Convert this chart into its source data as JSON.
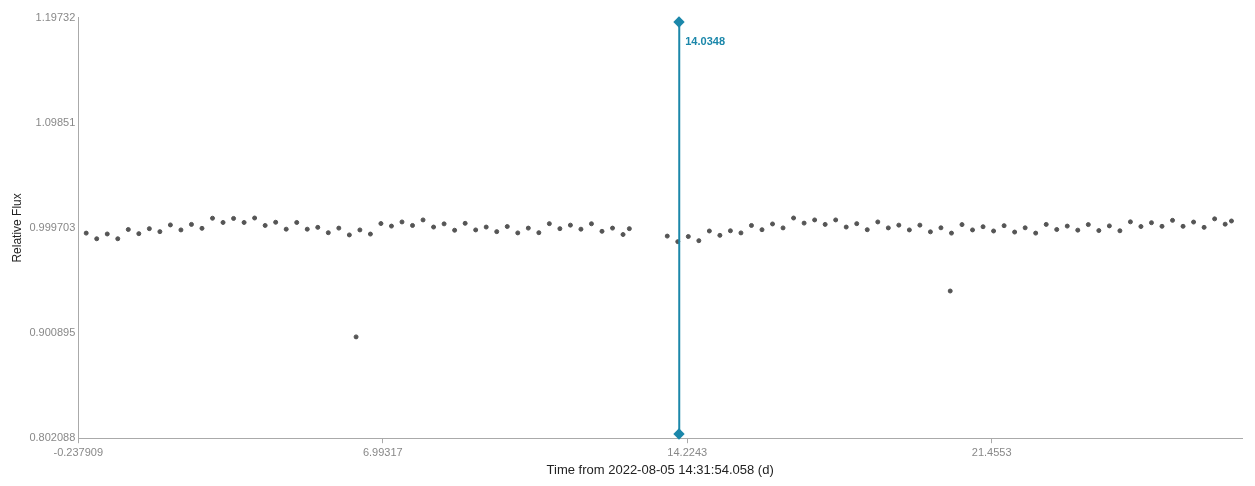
{
  "chart_data": {
    "type": "scatter",
    "xlabel": "Time from 2022-08-05 14:31:54.058 (d)",
    "ylabel": "Relative Flux",
    "xlim": [
      -0.237909,
      27.4
    ],
    "xticks": [
      -0.237909,
      6.99317,
      14.2243,
      21.4553
    ],
    "ylim": [
      0.802088,
      1.19732
    ],
    "yticks": [
      0.802088,
      0.900895,
      0.999703,
      1.09851,
      1.19732
    ],
    "grid": false,
    "legend": false,
    "marker": "circle",
    "ref_lines": [
      {
        "axis": "x",
        "value": 14.0348,
        "label": "14.0348",
        "color": "#1b87aa"
      }
    ],
    "series": [
      {
        "color": "#555555",
        "x": [
          -0.05,
          0.2,
          0.45,
          0.7,
          0.95,
          1.2,
          1.45,
          1.7,
          1.95,
          2.2,
          2.45,
          2.7,
          2.95,
          3.2,
          3.45,
          3.7,
          3.95,
          4.2,
          4.45,
          4.7,
          4.95,
          5.2,
          5.45,
          5.7,
          5.95,
          6.2,
          6.36,
          6.45,
          6.7,
          6.95,
          7.2,
          7.45,
          7.7,
          7.95,
          8.2,
          8.45,
          8.7,
          8.95,
          9.2,
          9.45,
          9.7,
          9.95,
          10.2,
          10.45,
          10.7,
          10.95,
          11.2,
          11.45,
          11.7,
          11.95,
          12.2,
          12.45,
          12.7,
          12.85,
          13.75,
          14.0,
          14.25,
          14.5,
          14.75,
          15.0,
          15.25,
          15.5,
          15.75,
          16.0,
          16.25,
          16.5,
          16.75,
          17.0,
          17.25,
          17.5,
          17.75,
          18.0,
          18.25,
          18.5,
          18.75,
          19.0,
          19.25,
          19.5,
          19.75,
          20.0,
          20.25,
          20.47,
          20.5,
          20.75,
          21.0,
          21.25,
          21.5,
          21.75,
          22.0,
          22.25,
          22.5,
          22.75,
          23.0,
          23.25,
          23.5,
          23.75,
          24.0,
          24.25,
          24.5,
          24.75,
          25.0,
          25.25,
          25.5,
          25.75,
          26.0,
          26.25,
          26.5,
          26.75,
          27.0,
          27.15
        ],
        "values": [
          0.9948,
          0.9895,
          0.994,
          0.9895,
          0.9982,
          0.9943,
          0.999,
          0.9962,
          1.0025,
          0.9978,
          1.003,
          0.9993,
          1.0088,
          1.0048,
          1.0086,
          1.0048,
          1.009,
          1.002,
          1.005,
          0.9985,
          1.0048,
          0.9985,
          1.0002,
          0.9952,
          0.9995,
          0.9931,
          0.8973,
          0.9978,
          0.9939,
          1.0038,
          1.0014,
          1.0053,
          1.002,
          1.0072,
          1.0005,
          1.0035,
          0.9975,
          1.004,
          0.9978,
          1.0005,
          0.9962,
          1.001,
          0.995,
          0.9995,
          0.9952,
          1.0037,
          0.999,
          1.0023,
          0.9985,
          1.0036,
          0.9965,
          0.9995,
          0.9935,
          0.999,
          0.992,
          0.9868,
          0.9916,
          0.9877,
          0.9968,
          0.9927,
          0.997,
          0.995,
          1.002,
          0.998,
          1.0034,
          0.9997,
          1.009,
          1.0042,
          1.0072,
          1.003,
          1.0072,
          1.0005,
          1.0037,
          0.998,
          1.0053,
          0.9997,
          1.0023,
          0.9978,
          1.0023,
          0.996,
          0.9998,
          0.9404,
          0.9948,
          1.0028,
          0.9978,
          1.0008,
          0.9968,
          1.0018,
          0.9958,
          0.9998,
          0.9948,
          1.003,
          0.9982,
          1.0014,
          0.9976,
          1.0028,
          0.9972,
          1.0016,
          0.997,
          1.0054,
          1.001,
          1.0046,
          1.0012,
          1.0068,
          1.0012,
          1.0052,
          1.0002,
          1.0082,
          1.0032,
          1.0062
        ]
      }
    ]
  }
}
